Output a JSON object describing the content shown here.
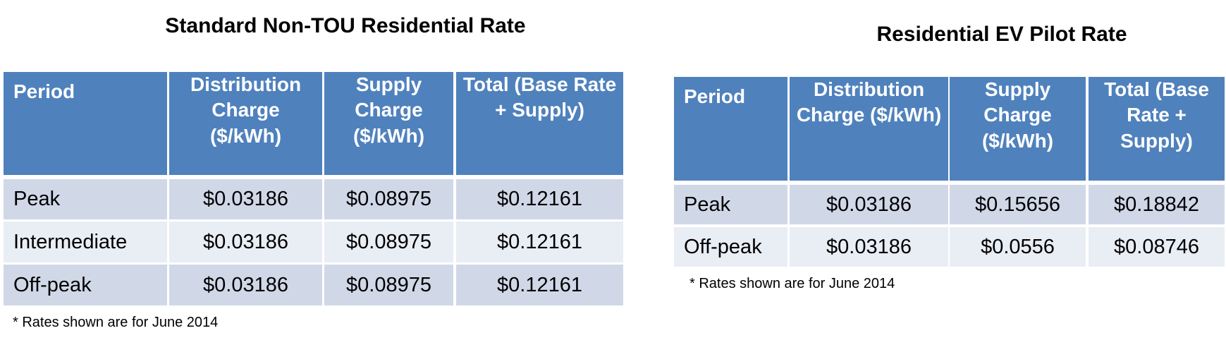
{
  "tables": [
    {
      "title": "Standard Non-TOU Residential Rate",
      "columns": [
        "Period",
        "Distribution Charge ($/kWh)",
        "Supply Charge ($/kWh)",
        "Total (Base Rate + Supply)"
      ],
      "rows": [
        [
          "Peak",
          "$0.03186",
          "$0.08975",
          "$0.12161"
        ],
        [
          "Intermediate",
          "$0.03186",
          "$0.08975",
          "$0.12161"
        ],
        [
          "Off-peak",
          "$0.03186",
          "$0.08975",
          "$0.12161"
        ]
      ],
      "note": "* Rates shown are for June 2014"
    },
    {
      "title": "Residential EV Pilot Rate",
      "columns": [
        "Period",
        "Distribution Charge ($/kWh)",
        "Supply Charge ($/kWh)",
        "Total (Base Rate + Supply)"
      ],
      "rows": [
        [
          "Peak",
          "$0.03186",
          "$0.15656",
          "$0.18842"
        ],
        [
          "Off-peak",
          "$0.03186",
          "$0.0556",
          "$0.08746"
        ]
      ],
      "note": "* Rates shown are for June 2014"
    }
  ]
}
